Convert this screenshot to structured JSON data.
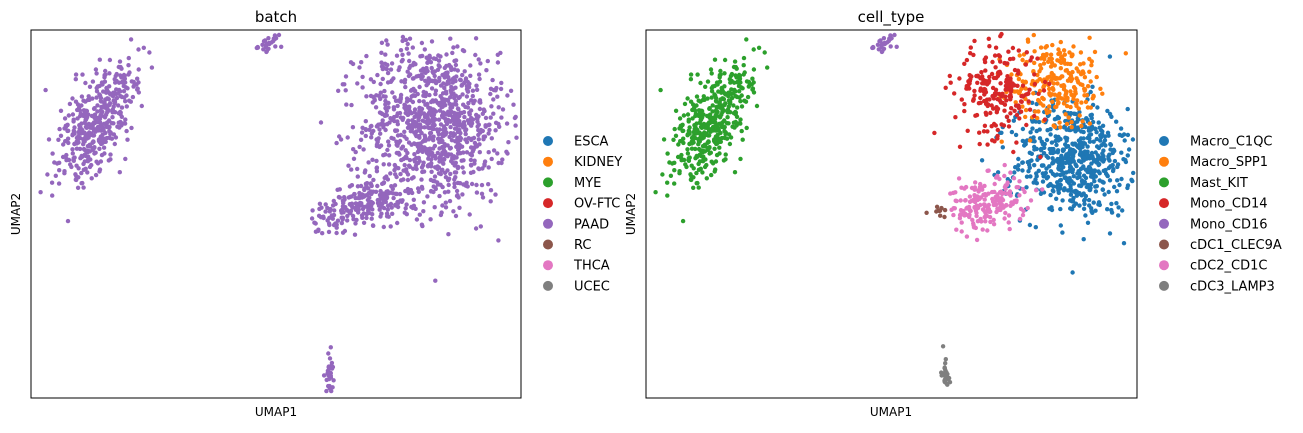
{
  "chart_data": [
    {
      "type": "scatter",
      "title": "batch",
      "xlabel": "UMAP1",
      "ylabel": "UMAP2",
      "grid": false,
      "legend_placement": "right",
      "xlim": [
        -7,
        14
      ],
      "ylim": [
        -9,
        10
      ],
      "categories": [
        {
          "name": "ESCA",
          "color": "#1f77b4"
        },
        {
          "name": "KIDNEY",
          "color": "#ff7f0e"
        },
        {
          "name": "MYE",
          "color": "#2ca02c"
        },
        {
          "name": "OV-FTC",
          "color": "#d62728"
        },
        {
          "name": "PAAD",
          "color": "#9467bd"
        },
        {
          "name": "RC",
          "color": "#8c564b"
        },
        {
          "name": "THCA",
          "color": "#e377c2"
        },
        {
          "name": "UCEC",
          "color": "#7f7f7f"
        }
      ],
      "clusters": [
        {
          "category": "PAAD",
          "center": [
            -4.2,
            5.2
          ],
          "sd": [
            0.65,
            1.8
          ],
          "rotation": -0.35,
          "n": 420
        },
        {
          "category": "PAAD",
          "center": [
            3.2,
            9.3
          ],
          "sd": [
            0.25,
            0.15
          ],
          "rotation": 0.3,
          "n": 25
        },
        {
          "category": "PAAD",
          "center": [
            10.3,
            5.2
          ],
          "sd": [
            1.55,
            2.1
          ],
          "rotation": 0.1,
          "n": 1000
        },
        {
          "category": "PAAD",
          "center": [
            7.6,
            1.2
          ],
          "sd": [
            0.9,
            0.6
          ],
          "rotation": 0.2,
          "n": 200
        },
        {
          "category": "PAAD",
          "center": [
            5.8,
            0.2
          ],
          "sd": [
            0.45,
            0.35
          ],
          "rotation": 0.0,
          "n": 40
        },
        {
          "category": "PAAD",
          "center": [
            5.8,
            -7.7
          ],
          "sd": [
            0.08,
            0.55
          ],
          "rotation": 0.0,
          "n": 30
        }
      ]
    },
    {
      "type": "scatter",
      "title": "cell_type",
      "xlabel": "UMAP1",
      "ylabel": "UMAP2",
      "grid": false,
      "legend_placement": "right",
      "xlim": [
        -7,
        14
      ],
      "ylim": [
        -9,
        10
      ],
      "categories": [
        {
          "name": "Macro_C1QC",
          "color": "#1f77b4"
        },
        {
          "name": "Macro_SPP1",
          "color": "#ff7f0e"
        },
        {
          "name": "Mast_KIT",
          "color": "#2ca02c"
        },
        {
          "name": "Mono_CD14",
          "color": "#d62728"
        },
        {
          "name": "Mono_CD16",
          "color": "#9467bd"
        },
        {
          "name": "cDC1_CLEC9A",
          "color": "#8c564b"
        },
        {
          "name": "cDC2_CD1C",
          "color": "#e377c2"
        },
        {
          "name": "cDC3_LAMP3",
          "color": "#7f7f7f"
        }
      ],
      "clusters": [
        {
          "category": "Mast_KIT",
          "center": [
            -4.2,
            5.2
          ],
          "sd": [
            0.65,
            1.8
          ],
          "rotation": -0.35,
          "n": 420
        },
        {
          "category": "Mono_CD16",
          "center": [
            3.2,
            9.3
          ],
          "sd": [
            0.25,
            0.15
          ],
          "rotation": 0.3,
          "n": 25
        },
        {
          "category": "Macro_C1QC",
          "center": [
            11.3,
            3.3
          ],
          "sd": [
            1.25,
            1.5
          ],
          "rotation": 0.1,
          "n": 600
        },
        {
          "category": "Macro_SPP1",
          "center": [
            10.6,
            7.4
          ],
          "sd": [
            1.0,
            1.1
          ],
          "rotation": 0.3,
          "n": 250
        },
        {
          "category": "Mono_CD14",
          "center": [
            8.0,
            6.9
          ],
          "sd": [
            0.9,
            1.2
          ],
          "rotation": 0.0,
          "n": 220
        },
        {
          "category": "cDC2_CD1C",
          "center": [
            7.6,
            1.1
          ],
          "sd": [
            0.85,
            0.65
          ],
          "rotation": 0.3,
          "n": 190
        },
        {
          "category": "cDC1_CLEC9A",
          "center": [
            5.6,
            0.6
          ],
          "sd": [
            0.2,
            0.15
          ],
          "rotation": 0.0,
          "n": 10
        },
        {
          "category": "cDC3_LAMP3",
          "center": [
            5.8,
            -7.7
          ],
          "sd": [
            0.08,
            0.55
          ],
          "rotation": 0.0,
          "n": 30
        }
      ]
    }
  ]
}
